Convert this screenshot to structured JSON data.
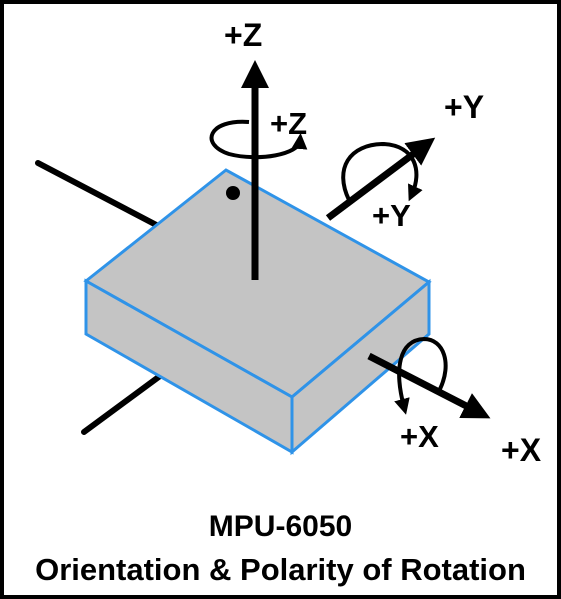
{
  "labels": {
    "z_axis": "+Z",
    "z_rotation": "+Z",
    "y_axis": "+Y",
    "y_rotation": "+Y",
    "x_axis": "+X",
    "x_rotation": "+X"
  },
  "caption": {
    "line1": "MPU-6050",
    "line2": "Orientation & Polarity of Rotation"
  },
  "colors": {
    "chip_fill": "#c4c4c4",
    "chip_edge": "#2f93e8",
    "axis": "#000000"
  }
}
